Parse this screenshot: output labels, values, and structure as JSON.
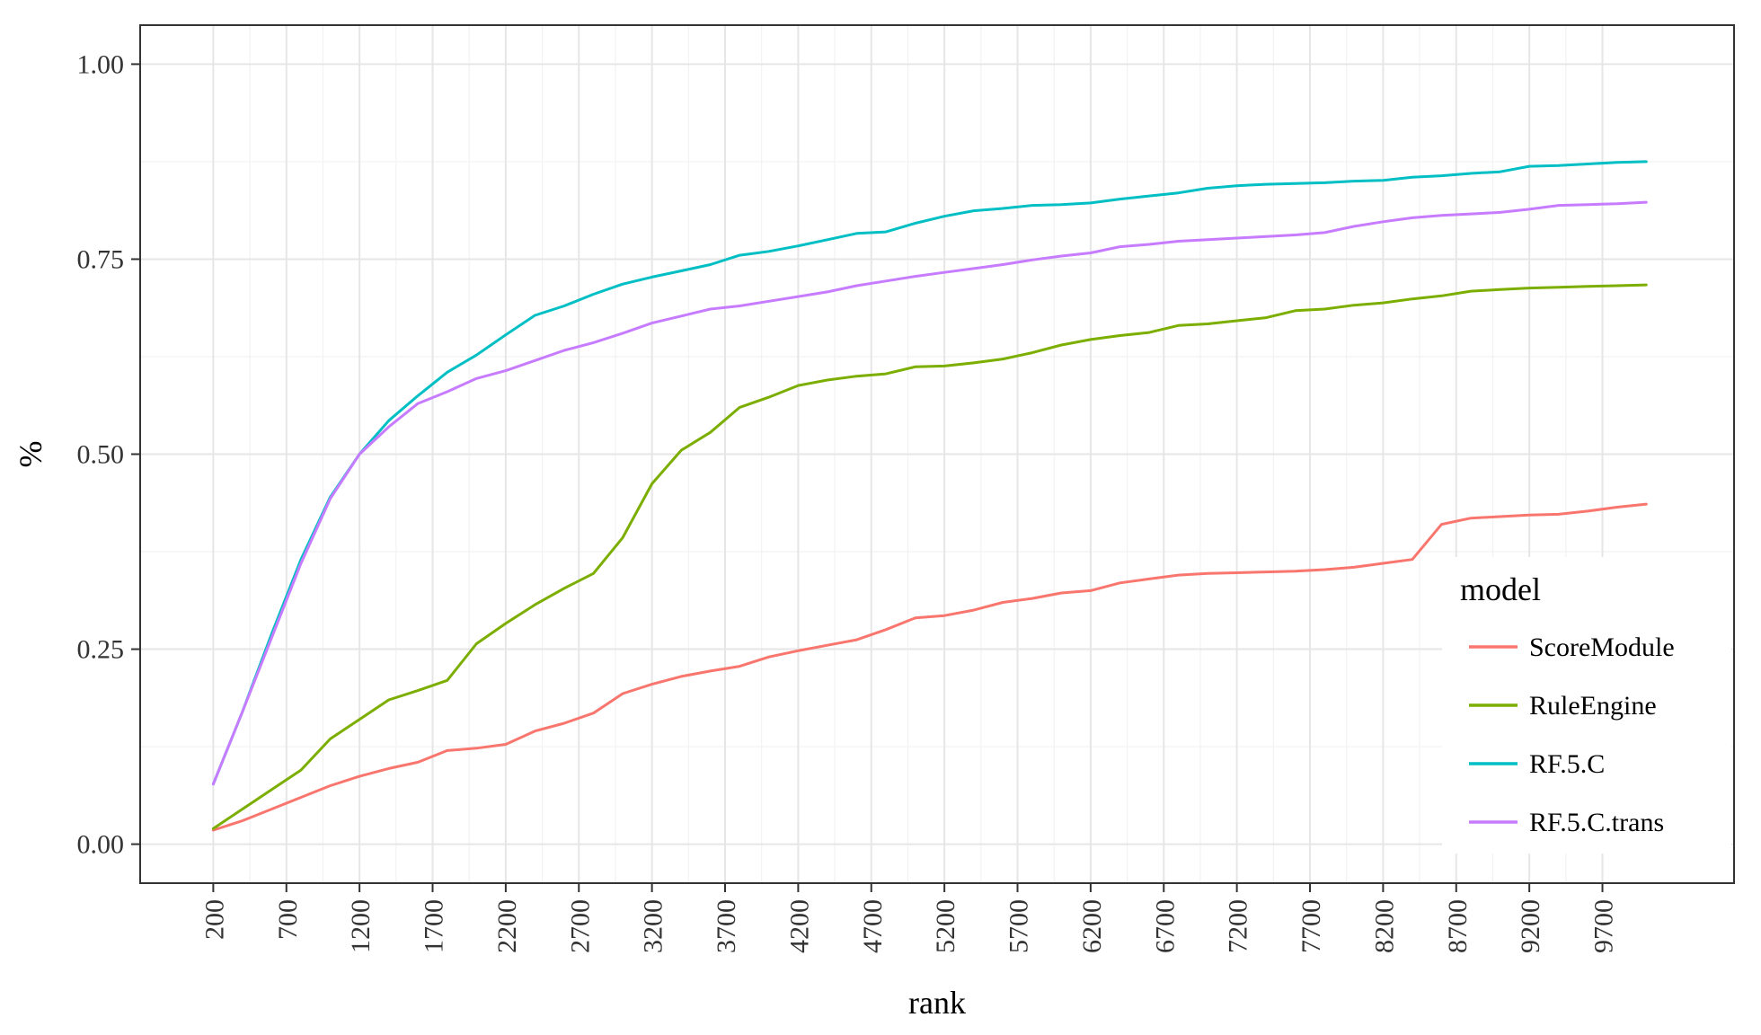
{
  "chart_data": {
    "type": "line",
    "title": "",
    "xlabel": "rank",
    "ylabel": "%",
    "xlim": [
      -300,
      10600
    ],
    "ylim": [
      -0.05,
      1.05
    ],
    "grid": true,
    "x_ticks": [
      200,
      700,
      1200,
      1700,
      2200,
      2700,
      3200,
      3700,
      4200,
      4700,
      5200,
      5700,
      6200,
      6700,
      7200,
      7700,
      8200,
      8700,
      9200,
      9700
    ],
    "x_tick_labels": [
      "200",
      "700",
      "1200",
      "1700",
      "2200",
      "2700",
      "3200",
      "3700",
      "4200",
      "4700",
      "5200",
      "5700",
      "6200",
      "6700",
      "7200",
      "7700",
      "8200",
      "8700",
      "9200",
      "9700"
    ],
    "y_ticks": [
      0,
      0.25,
      0.5,
      0.75,
      1.0
    ],
    "y_tick_labels": [
      "0.00",
      "0.25",
      "0.50",
      "0.75",
      "1.00"
    ],
    "legend": {
      "title": "model",
      "position": "right"
    },
    "series": [
      {
        "name": "ScoreModule",
        "color": "#F8766D",
        "x": [
          200,
          400,
          600,
          800,
          1000,
          1200,
          1400,
          1600,
          1800,
          2000,
          2200,
          2400,
          2600,
          2800,
          3000,
          3200,
          3400,
          3600,
          3800,
          4000,
          4200,
          4400,
          4600,
          4800,
          5000,
          5200,
          5400,
          5600,
          5800,
          6000,
          6200,
          6400,
          6600,
          6800,
          7000,
          7200,
          7400,
          7600,
          7800,
          8000,
          8200,
          8400,
          8600,
          8800,
          9000,
          9200,
          9400,
          9600,
          9800,
          10000
        ],
        "values": [
          0.018,
          0.03,
          0.045,
          0.06,
          0.075,
          0.087,
          0.097,
          0.105,
          0.12,
          0.123,
          0.128,
          0.145,
          0.155,
          0.168,
          0.193,
          0.205,
          0.215,
          0.222,
          0.228,
          0.24,
          0.248,
          0.255,
          0.262,
          0.275,
          0.29,
          0.293,
          0.3,
          0.31,
          0.315,
          0.322,
          0.325,
          0.335,
          0.34,
          0.345,
          0.347,
          0.348,
          0.349,
          0.35,
          0.352,
          0.355,
          0.36,
          0.365,
          0.41,
          0.418,
          0.42,
          0.422,
          0.423,
          0.427,
          0.432,
          0.436
        ]
      },
      {
        "name": "RuleEngine",
        "color": "#7CAE00",
        "x": [
          200,
          400,
          600,
          800,
          1000,
          1200,
          1400,
          1600,
          1800,
          2000,
          2200,
          2400,
          2600,
          2800,
          3000,
          3200,
          3400,
          3600,
          3800,
          4000,
          4200,
          4400,
          4600,
          4800,
          5000,
          5200,
          5400,
          5600,
          5800,
          6000,
          6200,
          6400,
          6600,
          6800,
          7000,
          7200,
          7400,
          7600,
          7800,
          8000,
          8200,
          8400,
          8600,
          8800,
          9000,
          9200,
          9400,
          9600,
          9800,
          10000
        ],
        "values": [
          0.02,
          0.045,
          0.07,
          0.095,
          0.135,
          0.16,
          0.185,
          0.197,
          0.21,
          0.257,
          0.283,
          0.307,
          0.328,
          0.347,
          0.393,
          0.462,
          0.505,
          0.528,
          0.56,
          0.573,
          0.588,
          0.595,
          0.6,
          0.603,
          0.612,
          0.613,
          0.617,
          0.622,
          0.63,
          0.64,
          0.647,
          0.652,
          0.656,
          0.665,
          0.667,
          0.671,
          0.675,
          0.684,
          0.686,
          0.691,
          0.694,
          0.699,
          0.703,
          0.709,
          0.711,
          0.713,
          0.714,
          0.715,
          0.716,
          0.717
        ]
      },
      {
        "name": "RF.5.C",
        "color": "#00BFC4",
        "x": [
          200,
          400,
          600,
          800,
          1000,
          1200,
          1400,
          1600,
          1800,
          2000,
          2200,
          2400,
          2600,
          2800,
          3000,
          3200,
          3400,
          3600,
          3800,
          4000,
          4200,
          4400,
          4600,
          4800,
          5000,
          5200,
          5400,
          5600,
          5800,
          6000,
          6200,
          6400,
          6600,
          6800,
          7000,
          7200,
          7400,
          7600,
          7800,
          8000,
          8200,
          8400,
          8600,
          8800,
          9000,
          9200,
          9400,
          9600,
          9800,
          10000
        ],
        "values": [
          0.077,
          0.17,
          0.27,
          0.365,
          0.445,
          0.5,
          0.543,
          0.575,
          0.605,
          0.627,
          0.653,
          0.678,
          0.69,
          0.705,
          0.718,
          0.727,
          0.735,
          0.743,
          0.755,
          0.76,
          0.767,
          0.775,
          0.783,
          0.785,
          0.796,
          0.805,
          0.812,
          0.815,
          0.819,
          0.82,
          0.822,
          0.827,
          0.831,
          0.835,
          0.841,
          0.844,
          0.846,
          0.847,
          0.848,
          0.85,
          0.851,
          0.855,
          0.857,
          0.86,
          0.862,
          0.869,
          0.87,
          0.872,
          0.874,
          0.875
        ]
      },
      {
        "name": "RF.5.C.trans",
        "color": "#C77CFF",
        "x": [
          200,
          400,
          600,
          800,
          1000,
          1200,
          1400,
          1600,
          1800,
          2000,
          2200,
          2400,
          2600,
          2800,
          3000,
          3200,
          3400,
          3600,
          3800,
          4000,
          4200,
          4400,
          4600,
          4800,
          5000,
          5200,
          5400,
          5600,
          5800,
          6000,
          6200,
          6400,
          6600,
          6800,
          7000,
          7200,
          7400,
          7600,
          7800,
          8000,
          8200,
          8400,
          8600,
          8800,
          9000,
          9200,
          9400,
          9600,
          9800,
          10000
        ],
        "values": [
          0.077,
          0.17,
          0.265,
          0.36,
          0.443,
          0.5,
          0.535,
          0.565,
          0.58,
          0.597,
          0.607,
          0.62,
          0.633,
          0.643,
          0.655,
          0.668,
          0.677,
          0.686,
          0.69,
          0.696,
          0.702,
          0.708,
          0.716,
          0.722,
          0.728,
          0.733,
          0.738,
          0.743,
          0.749,
          0.754,
          0.758,
          0.766,
          0.769,
          0.773,
          0.775,
          0.777,
          0.779,
          0.781,
          0.784,
          0.792,
          0.798,
          0.803,
          0.806,
          0.808,
          0.81,
          0.814,
          0.819,
          0.82,
          0.821,
          0.823
        ]
      }
    ]
  }
}
